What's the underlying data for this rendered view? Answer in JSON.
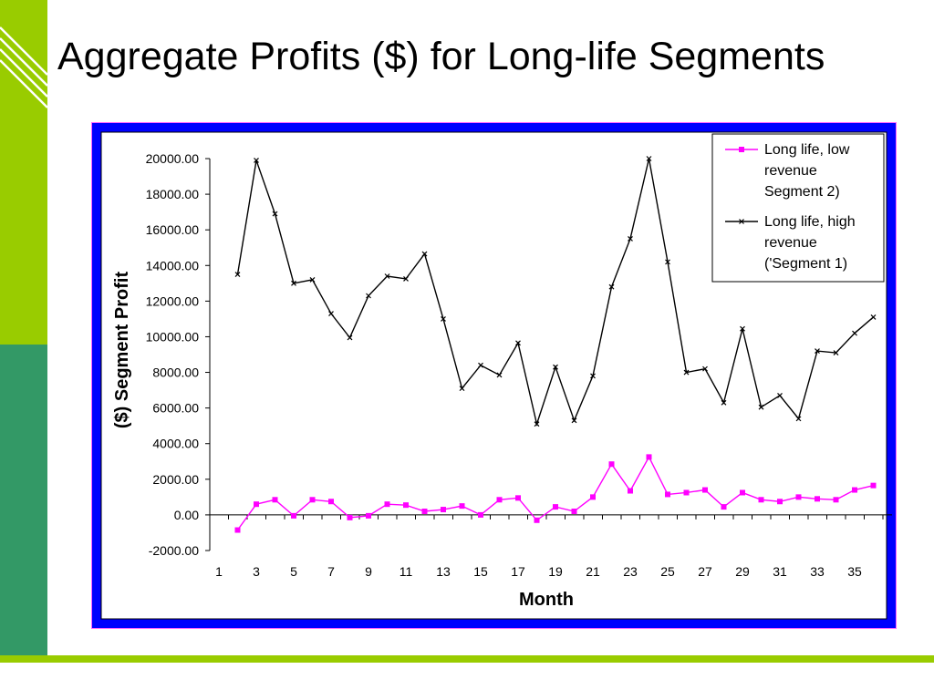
{
  "slide": {
    "title": "Aggregate Profits ($) for Long-life Segments"
  },
  "theme": {
    "accent_green": "#99cc00",
    "dark_green": "#339966",
    "frame_blue": "#0000ff",
    "frame_border": "#ff66ff"
  },
  "chart_data": {
    "type": "line",
    "xlabel": "Month",
    "ylabel": "($) Segment Profit",
    "ylim": [
      -2000,
      20000
    ],
    "y_ticks": [
      "20000.00",
      "18000.00",
      "16000.00",
      "14000.00",
      "12000.00",
      "10000.00",
      "8000.00",
      "6000.00",
      "4000.00",
      "2000.00",
      "0.00",
      "-2000.00"
    ],
    "x_tick_labels": [
      "1",
      "3",
      "5",
      "7",
      "9",
      "11",
      "13",
      "15",
      "17",
      "19",
      "21",
      "23",
      "25",
      "27",
      "29",
      "31",
      "33",
      "35"
    ],
    "x": [
      2,
      3,
      4,
      5,
      6,
      7,
      8,
      9,
      10,
      11,
      12,
      13,
      14,
      15,
      16,
      17,
      18,
      19,
      20,
      21,
      22,
      23,
      24,
      25,
      26,
      27,
      28,
      29,
      30,
      31,
      32,
      33,
      34,
      35,
      36
    ],
    "grid": false,
    "legend_position": "top-right",
    "series": [
      {
        "name": "Long life, low revenue Segment 2)",
        "legend_lines": [
          "Long life, low",
          "revenue",
          "Segment 2)"
        ],
        "color": "#ff00ff",
        "marker": "square",
        "values": [
          -850,
          600,
          850,
          -50,
          850,
          750,
          -150,
          -50,
          600,
          550,
          200,
          300,
          500,
          0,
          850,
          950,
          -300,
          450,
          200,
          1000,
          2850,
          1350,
          3250,
          1150,
          1250,
          1400,
          450,
          1250,
          850,
          750,
          1000,
          900,
          850,
          1400,
          1650
        ]
      },
      {
        "name": "Long life, high revenue ('Segment 1)",
        "legend_lines": [
          "Long life, high",
          "revenue",
          "('Segment 1)"
        ],
        "color": "#000000",
        "marker": "x",
        "values": [
          13500,
          19900,
          16900,
          13000,
          13200,
          11300,
          9950,
          12300,
          13400,
          13250,
          14650,
          11000,
          7100,
          8400,
          7850,
          9650,
          5100,
          8300,
          5300,
          7800,
          12800,
          15500,
          20000,
          14200,
          8000,
          8200,
          6300,
          10450,
          6050,
          6700,
          5400,
          9200,
          9100,
          10200,
          11100
        ]
      }
    ]
  }
}
